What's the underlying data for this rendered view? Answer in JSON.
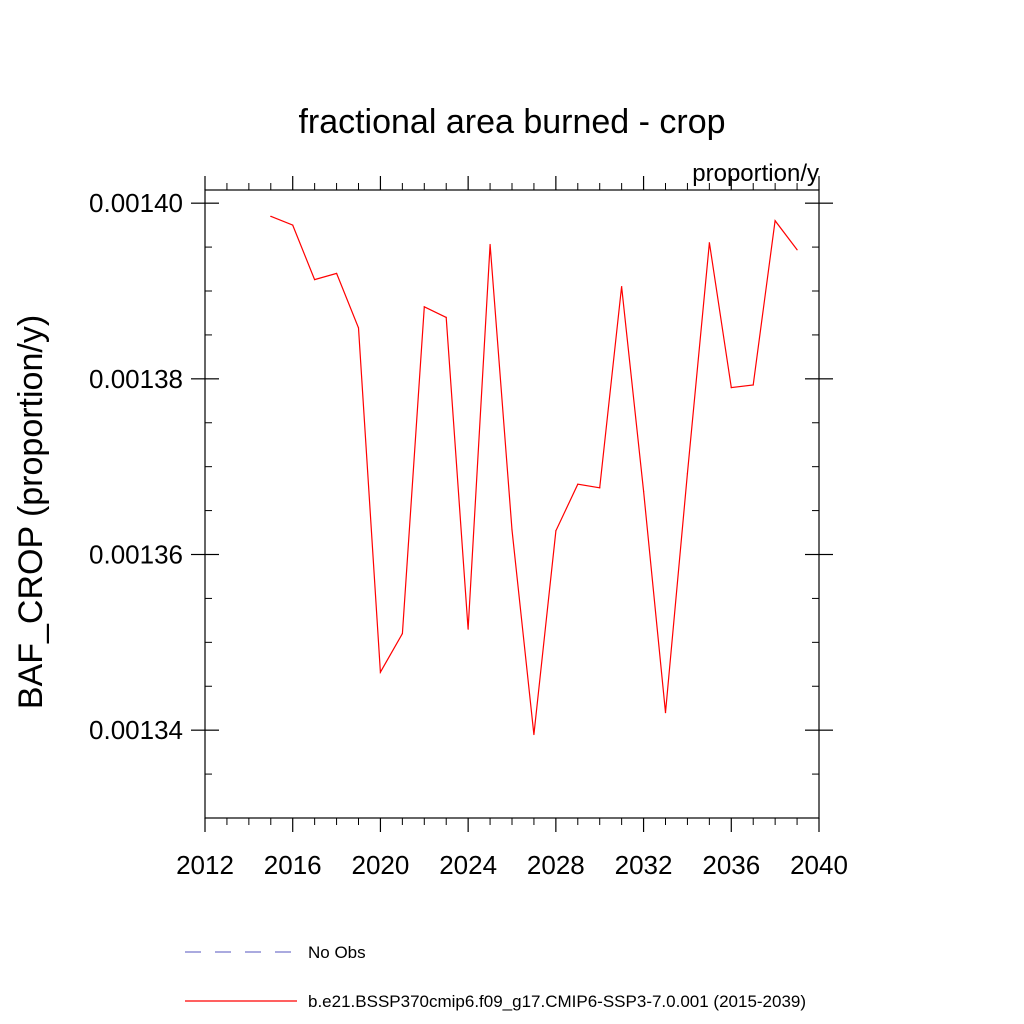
{
  "chart_data": {
    "type": "line",
    "title": "fractional area burned - crop",
    "units_label": "proportion/y",
    "ylabel": "BAF_CROP  (proportion/y)",
    "xlabel": "",
    "xlim": [
      2012,
      2040
    ],
    "ylim": [
      0.00133,
      0.0014015
    ],
    "x_ticks": [
      2012,
      2016,
      2020,
      2024,
      2028,
      2032,
      2036,
      2040
    ],
    "x_tick_labels": [
      "2012",
      "2016",
      "2020",
      "2024",
      "2028",
      "2032",
      "2036",
      "2040"
    ],
    "y_ticks": [
      0.00134,
      0.00136,
      0.00138,
      0.0014
    ],
    "y_tick_labels": [
      "0.00134",
      "0.00136",
      "0.00138",
      "0.00140"
    ],
    "grid": false,
    "legend_placement": "bottom",
    "series": [
      {
        "name": "b.e21.BSSP370cmip6.f09_g17.CMIP6-SSP3-7.0.001 (2015-2039)",
        "color": "#ff0000",
        "style": "solid",
        "x": [
          2015,
          2016,
          2017,
          2018,
          2019,
          2020,
          2021,
          2022,
          2023,
          2024,
          2025,
          2026,
          2027,
          2028,
          2029,
          2030,
          2031,
          2032,
          2033,
          2034,
          2035,
          2036,
          2037,
          2038,
          2039
        ],
        "y": [
          0.0013985,
          0.0013975,
          0.0013913,
          0.001392,
          0.0013858,
          0.0013466,
          0.001351,
          0.0013882,
          0.001387,
          0.0013515,
          0.0013953,
          0.0013628,
          0.0013395,
          0.0013627,
          0.001368,
          0.0013676,
          0.0013905,
          0.0013672,
          0.001342,
          0.0013692,
          0.0013955,
          0.001379,
          0.0013793,
          0.001398,
          0.0013947
        ]
      },
      {
        "name": "No Obs",
        "color": "#7777cc",
        "style": "dashed",
        "x": [],
        "y": []
      }
    ]
  }
}
